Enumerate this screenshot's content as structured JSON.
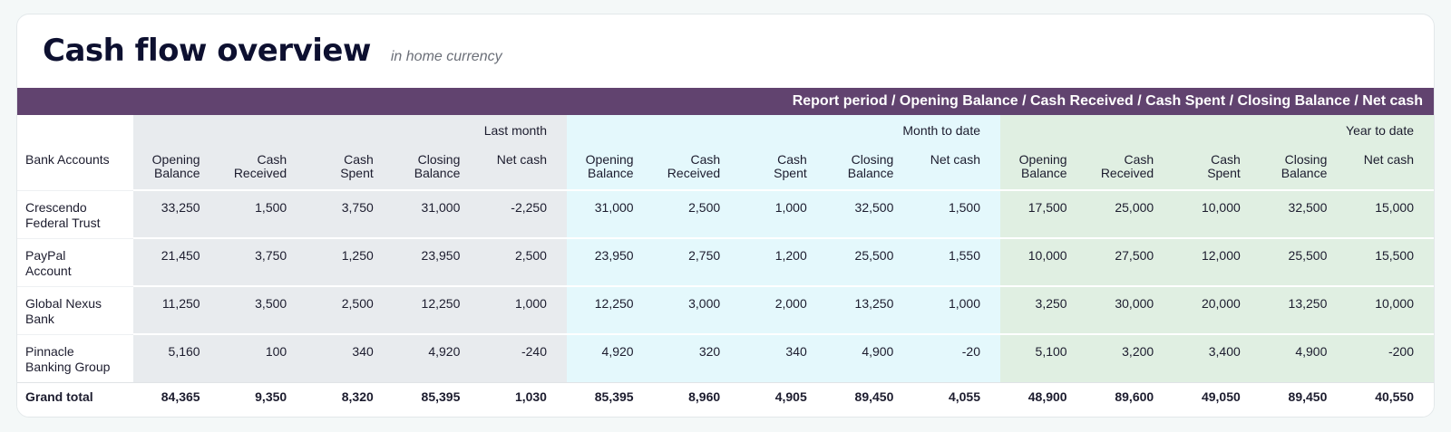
{
  "header": {
    "title": "Cash flow overview",
    "subtitle": "in home currency"
  },
  "banner": "Report period / Opening Balance / Cash Received / Cash Spent / Closing Balance / Net cash",
  "periods": [
    "Last month",
    "Month to date",
    "Year to date"
  ],
  "row_header_label": "Bank Accounts",
  "columns": [
    "Opening\nBalance",
    "Cash\nReceived",
    "Cash\nSpent",
    "Closing\nBalance",
    "Net cash"
  ],
  "rows": [
    {
      "account": "Crescendo Federal Trust",
      "values": [
        "33,250",
        "1,500",
        "3,750",
        "31,000",
        "-2,250",
        "31,000",
        "2,500",
        "1,000",
        "32,500",
        "1,500",
        "17,500",
        "25,000",
        "10,000",
        "32,500",
        "15,000"
      ]
    },
    {
      "account": "PayPal Account",
      "values": [
        "21,450",
        "3,750",
        "1,250",
        "23,950",
        "2,500",
        "23,950",
        "2,750",
        "1,200",
        "25,500",
        "1,550",
        "10,000",
        "27,500",
        "12,000",
        "25,500",
        "15,500"
      ]
    },
    {
      "account": "Global Nexus Bank",
      "values": [
        "11,250",
        "3,500",
        "2,500",
        "12,250",
        "1,000",
        "12,250",
        "3,000",
        "2,000",
        "13,250",
        "1,000",
        "3,250",
        "30,000",
        "20,000",
        "13,250",
        "10,000"
      ]
    },
    {
      "account": "Pinnacle Banking Group",
      "values": [
        "5,160",
        "100",
        "340",
        "4,920",
        "-240",
        "4,920",
        "320",
        "340",
        "4,900",
        "-20",
        "5,100",
        "3,200",
        "3,400",
        "4,900",
        "-200"
      ]
    }
  ],
  "grand_total": {
    "label": "Grand total",
    "values": [
      "84,365",
      "9,350",
      "8,320",
      "85,395",
      "1,030",
      "85,395",
      "8,960",
      "4,905",
      "89,450",
      "4,055",
      "48,900",
      "89,600",
      "49,050",
      "89,450",
      "40,550"
    ]
  },
  "colors": {
    "banner": "#61436f",
    "last_month_band": "#e8ebee",
    "month_to_date_band": "#e4f8fc",
    "year_to_date_band": "#e0efe2"
  }
}
